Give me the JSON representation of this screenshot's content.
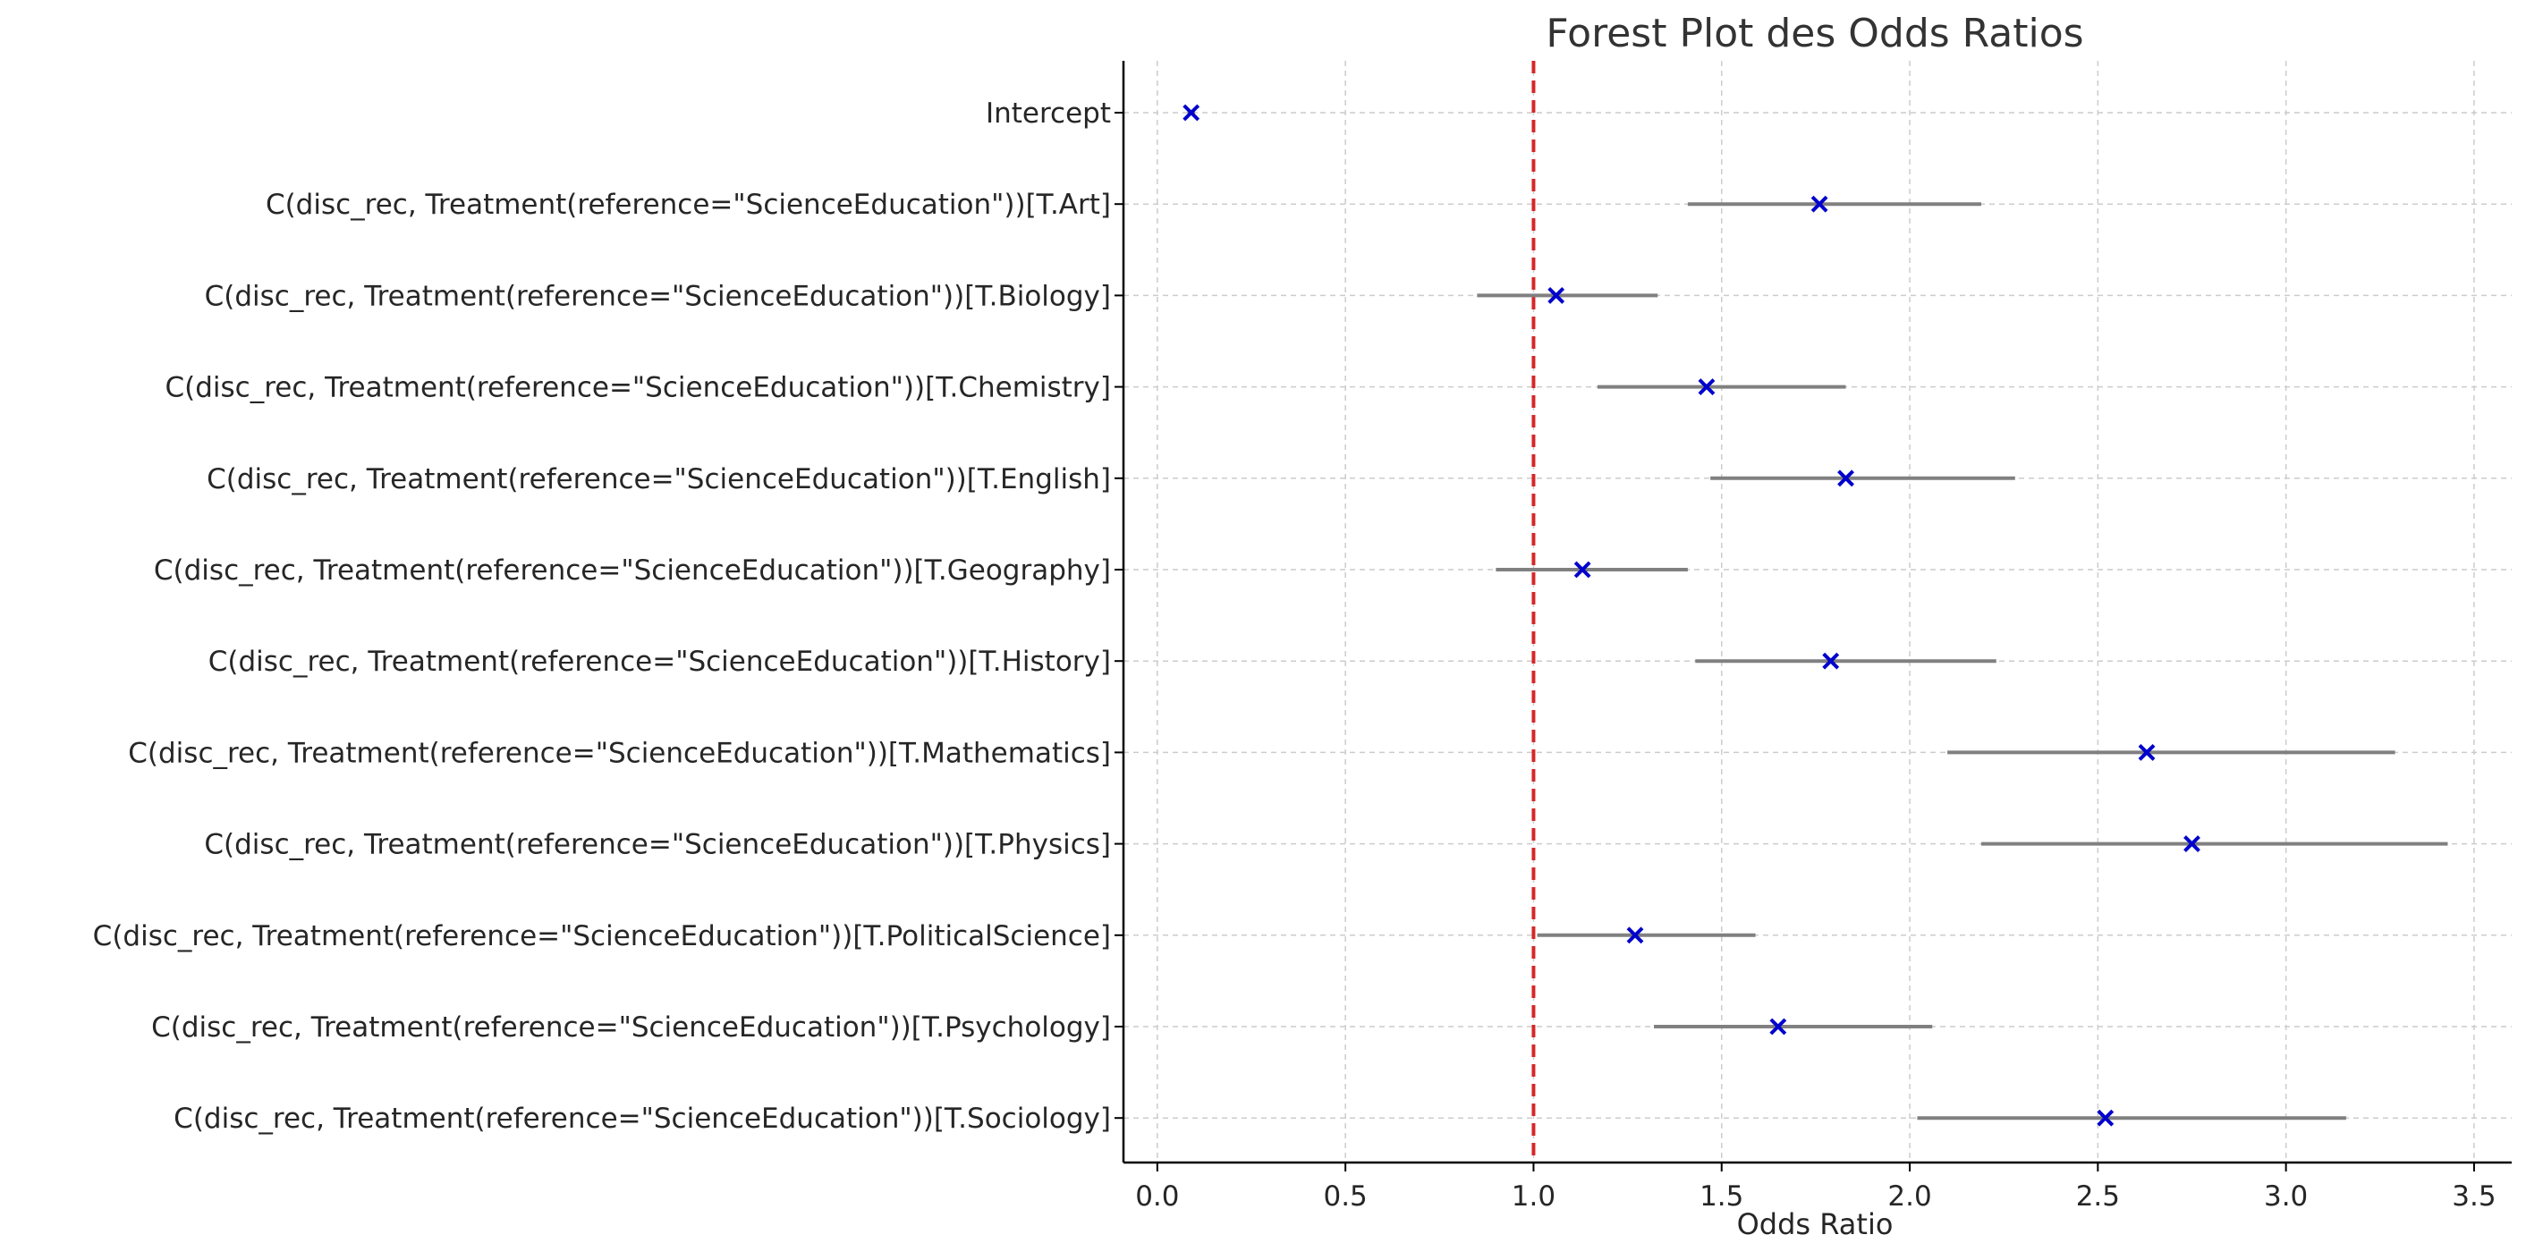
{
  "chart_data": {
    "type": "forest",
    "title": "Forest Plot des Odds Ratios",
    "xlabel": "Odds Ratio",
    "ylabel": "",
    "xlim": [
      -0.09,
      3.6
    ],
    "xticks": [
      0.0,
      0.5,
      1.0,
      1.5,
      2.0,
      2.5,
      3.0,
      3.5
    ],
    "xtick_labels": [
      "0.0",
      "0.5",
      "1.0",
      "1.5",
      "2.0",
      "2.5",
      "3.0",
      "3.5"
    ],
    "reference_line": 1.0,
    "grid": true,
    "rows": [
      {
        "label": "Intercept",
        "or": 0.09,
        "ci_low": 0.08,
        "ci_high": 0.1
      },
      {
        "label": "C(disc_rec, Treatment(reference=\"ScienceEducation\"))[T.Art]",
        "or": 1.76,
        "ci_low": 1.41,
        "ci_high": 2.19
      },
      {
        "label": "C(disc_rec, Treatment(reference=\"ScienceEducation\"))[T.Biology]",
        "or": 1.06,
        "ci_low": 0.85,
        "ci_high": 1.33
      },
      {
        "label": "C(disc_rec, Treatment(reference=\"ScienceEducation\"))[T.Chemistry]",
        "or": 1.46,
        "ci_low": 1.17,
        "ci_high": 1.83
      },
      {
        "label": "C(disc_rec, Treatment(reference=\"ScienceEducation\"))[T.English]",
        "or": 1.83,
        "ci_low": 1.47,
        "ci_high": 2.28
      },
      {
        "label": "C(disc_rec, Treatment(reference=\"ScienceEducation\"))[T.Geography]",
        "or": 1.13,
        "ci_low": 0.9,
        "ci_high": 1.41
      },
      {
        "label": "C(disc_rec, Treatment(reference=\"ScienceEducation\"))[T.History]",
        "or": 1.79,
        "ci_low": 1.43,
        "ci_high": 2.23
      },
      {
        "label": "C(disc_rec, Treatment(reference=\"ScienceEducation\"))[T.Mathematics]",
        "or": 2.63,
        "ci_low": 2.1,
        "ci_high": 3.29
      },
      {
        "label": "C(disc_rec, Treatment(reference=\"ScienceEducation\"))[T.Physics]",
        "or": 2.75,
        "ci_low": 2.19,
        "ci_high": 3.43
      },
      {
        "label": "C(disc_rec, Treatment(reference=\"ScienceEducation\"))[T.PoliticalScience]",
        "or": 1.27,
        "ci_low": 1.01,
        "ci_high": 1.59
      },
      {
        "label": "C(disc_rec, Treatment(reference=\"ScienceEducation\"))[T.Psychology]",
        "or": 1.65,
        "ci_low": 1.32,
        "ci_high": 2.06
      },
      {
        "label": "C(disc_rec, Treatment(reference=\"ScienceEducation\"))[T.Sociology]",
        "or": 2.52,
        "ci_low": 2.02,
        "ci_high": 3.16
      }
    ],
    "colors": {
      "marker": "#0000cc",
      "ci_line": "#808080",
      "reference_line": "#d62728",
      "grid": "#cccccc",
      "axis": "#000000"
    }
  }
}
